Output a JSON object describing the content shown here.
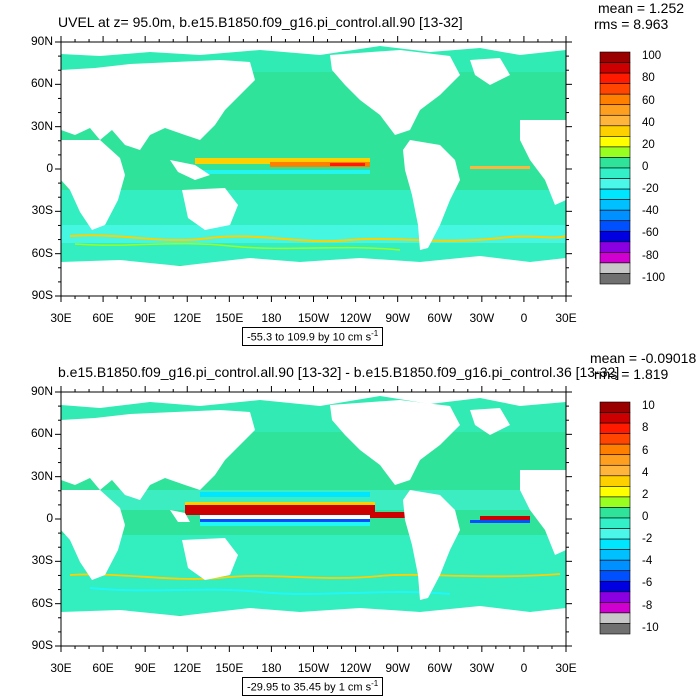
{
  "panels": [
    {
      "title": "UVEL at z=  95.0m, b.e15.B1850.f09_g16.pi_control.all.90 [13-32]",
      "mean": "mean = 1.252",
      "rms": "rms = 8.963",
      "contour_info": "-55.3 to 109.9 by 10 cm s",
      "contour_unit_exp": "-1",
      "lat_labels": [
        "90N",
        "60N",
        "30N",
        "0",
        "30S",
        "60S",
        "90S"
      ],
      "lon_labels": [
        "30E",
        "60E",
        "90E",
        "120E",
        "150E",
        "180",
        "150W",
        "120W",
        "90W",
        "60W",
        "30W",
        "0",
        "30E"
      ],
      "colorbar_labels": [
        "100",
        "80",
        "60",
        "40",
        "20",
        "0",
        "-20",
        "-40",
        "-60",
        "-80",
        "-100"
      ]
    },
    {
      "title": "b.e15.B1850.f09_g16.pi_control.all.90 [13-32] - b.e15.B1850.f09_g16.pi_control.36 [13-32]",
      "mean": "mean = -0.09018",
      "rms": "rms = 1.819",
      "contour_info": "-29.95 to 35.45 by 1 cm s",
      "contour_unit_exp": "-1",
      "lat_labels": [
        "90N",
        "60N",
        "30N",
        "0",
        "30S",
        "60S",
        "90S"
      ],
      "lon_labels": [
        "30E",
        "60E",
        "90E",
        "120E",
        "150E",
        "180",
        "150W",
        "120W",
        "90W",
        "60W",
        "30W",
        "0",
        "30E"
      ],
      "colorbar_labels": [
        "10",
        "8",
        "6",
        "4",
        "2",
        "0",
        "-2",
        "-4",
        "-6",
        "-8",
        "-10"
      ]
    }
  ],
  "colors": {
    "ocean_base": "#2fe39a",
    "ocean_light": "#34f0c8",
    "ocean_cyan": "#22f7f7",
    "land": "#ffffff",
    "colorbar": [
      "#9a0000",
      "#cc0000",
      "#ff1a00",
      "#ff4500",
      "#ff7f00",
      "#ff9f20",
      "#ffb43c",
      "#ffd000",
      "#ffff00",
      "#98ff20",
      "#2fe39a",
      "#34f0c8",
      "#4af7e8",
      "#00e6ff",
      "#00c0ff",
      "#0090ff",
      "#0050ff",
      "#0000e0",
      "#8a00e0",
      "#d000d0",
      "#c8c8c8",
      "#707070"
    ]
  }
}
